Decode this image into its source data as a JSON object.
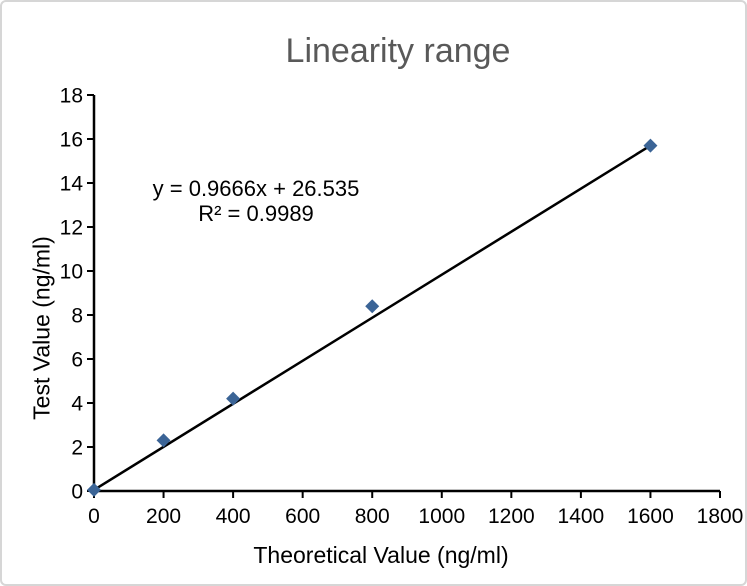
{
  "window": {
    "background_color": "#ffffff",
    "border_color": "#d6d6d6"
  },
  "chart_data": {
    "type": "scatter",
    "title": "Linearity range",
    "title_color": "#595959",
    "xlabel": "Theoretical Value (ng/ml)",
    "ylabel": "Test Value (ng/ml)",
    "xlim": [
      0,
      1800
    ],
    "ylim": [
      0,
      18
    ],
    "xticks": [
      0,
      200,
      400,
      600,
      800,
      1000,
      1200,
      1400,
      1600,
      1800
    ],
    "yticks": [
      0,
      2,
      4,
      6,
      8,
      10,
      12,
      14,
      16,
      18
    ],
    "grid": false,
    "legend": "none",
    "points": {
      "x": [
        0,
        200,
        400,
        800,
        1600
      ],
      "y": [
        0.05,
        2.3,
        4.2,
        8.4,
        15.7
      ]
    },
    "trendline": {
      "x1": 0,
      "y1": 0.05,
      "x2": 1600,
      "y2": 15.7,
      "color": "#000000",
      "width": 2.5
    },
    "marker": {
      "shape": "diamond",
      "color": "#3b6496",
      "size": 14
    },
    "axis_color": "#000000",
    "annotation": {
      "line1": "y = 0.9666x + 26.535",
      "line2": "R² = 0.9989"
    }
  }
}
